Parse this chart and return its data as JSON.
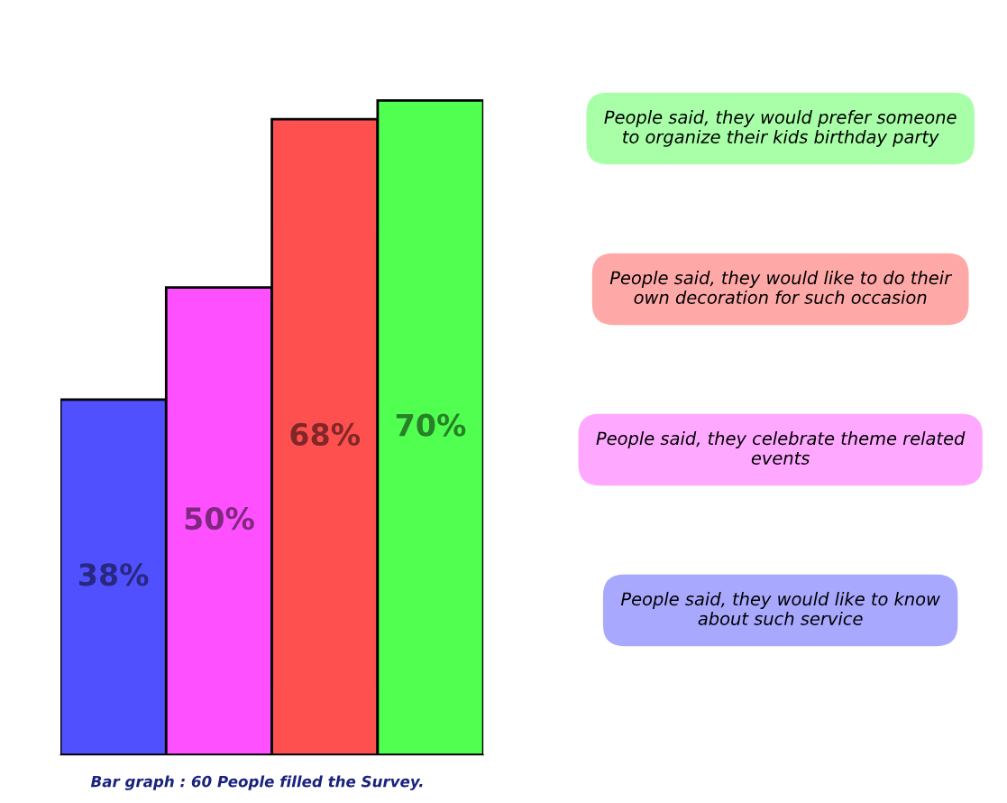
{
  "chart_data": {
    "type": "bar",
    "categories": [
      null,
      null,
      null,
      null
    ],
    "values": [
      38,
      50,
      68,
      70
    ],
    "colors": [
      "#5050ff",
      "#ff50ff",
      "#ff5050",
      "#50ff50"
    ],
    "value_labels": [
      "38%",
      "50%",
      "68%",
      "70%"
    ],
    "annotations": [
      "People said, they would prefer someone to organize their kids birthday party",
      "People said, they would like to do their own decoration for such occasion",
      "People said, they celebrate theme related events",
      "People said, they would like to know about such service",
      "Bar graph : 60 People filled the Survey."
    ]
  }
}
